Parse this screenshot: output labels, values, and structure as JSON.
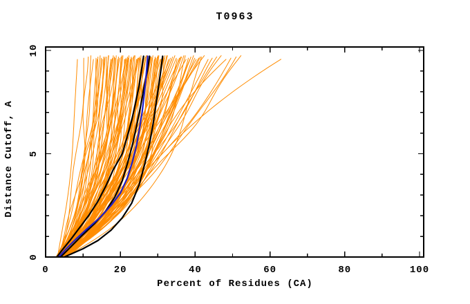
{
  "title": "T0963",
  "axes": {
    "xlabel": "Percent of Residues (CA)",
    "ylabel": "Distance Cutoff, A"
  },
  "colors": {
    "background": "#ffffff",
    "frame": "#000000",
    "orange_models": "#FF8C00",
    "highlight_black": "#000000",
    "highlight_blue": "#2020C8"
  },
  "chart_data": {
    "type": "line",
    "title": "T0963",
    "xlabel": "Percent of Residues (CA)",
    "ylabel": "Distance Cutoff, A",
    "xlim": [
      0,
      101
    ],
    "ylim": [
      0,
      10.17
    ],
    "x_major_ticks": [
      0,
      20,
      40,
      60,
      80,
      100
    ],
    "x_minor_ticks": [
      10,
      30,
      50,
      70,
      90
    ],
    "y_major_ticks": [
      0,
      5,
      10
    ],
    "y_minor_ticks": [
      1,
      2,
      3,
      4,
      6,
      7,
      8,
      9
    ],
    "grid": false,
    "legend": "none",
    "series": [
      {
        "name": "highlight-black-1",
        "color": "#000000",
        "width": 2.2,
        "points": [
          [
            3,
            0
          ],
          [
            4.5,
            0.35
          ],
          [
            6.5,
            0.8
          ],
          [
            9,
            1.4
          ],
          [
            11.5,
            2.0
          ],
          [
            14,
            2.7
          ],
          [
            16,
            3.4
          ],
          [
            18,
            4.2
          ],
          [
            20.5,
            5.0
          ],
          [
            21.8,
            5.8
          ],
          [
            23,
            6.6
          ],
          [
            24,
            7.4
          ],
          [
            25,
            8.3
          ],
          [
            25.7,
            9.1
          ],
          [
            26.2,
            9.72
          ]
        ]
      },
      {
        "name": "highlight-black-2",
        "color": "#000000",
        "width": 2.2,
        "points": [
          [
            4,
            0
          ],
          [
            6.5,
            0.45
          ],
          [
            9.5,
            1.0
          ],
          [
            13,
            1.6
          ],
          [
            16,
            2.2
          ],
          [
            18.5,
            2.9
          ],
          [
            20.5,
            3.7
          ],
          [
            22,
            4.6
          ],
          [
            23.3,
            5.5
          ],
          [
            24.4,
            6.4
          ],
          [
            25.4,
            7.3
          ],
          [
            26.3,
            8.2
          ],
          [
            27.2,
            9.0
          ],
          [
            27.8,
            9.72
          ]
        ]
      },
      {
        "name": "highlight-black-3",
        "color": "#000000",
        "width": 2.2,
        "points": [
          [
            5,
            0
          ],
          [
            10,
            0.4
          ],
          [
            14,
            0.8
          ],
          [
            17.5,
            1.3
          ],
          [
            20.5,
            1.9
          ],
          [
            23,
            2.6
          ],
          [
            25,
            3.5
          ],
          [
            26.5,
            4.5
          ],
          [
            27.8,
            5.5
          ],
          [
            28.8,
            6.5
          ],
          [
            29.6,
            7.5
          ],
          [
            30.4,
            8.5
          ],
          [
            31,
            9.3
          ],
          [
            31.3,
            9.72
          ]
        ]
      },
      {
        "name": "highlight-blue",
        "color": "#2020C8",
        "width": 2.2,
        "points": [
          [
            3.5,
            0
          ],
          [
            5.5,
            0.4
          ],
          [
            8,
            0.85
          ],
          [
            11,
            1.35
          ],
          [
            14.5,
            1.9
          ],
          [
            17.5,
            2.5
          ],
          [
            20,
            3.1
          ],
          [
            21.8,
            3.8
          ],
          [
            23.2,
            4.6
          ],
          [
            24.3,
            5.4
          ],
          [
            25.1,
            6.2
          ],
          [
            25.8,
            7.0
          ],
          [
            26.4,
            7.9
          ],
          [
            26.9,
            8.8
          ],
          [
            27.3,
            9.72
          ]
        ]
      }
    ],
    "background_curves": {
      "name": "server-model-curves",
      "color": "#FF8C00",
      "width": 1,
      "count": 109,
      "note": "each entry is [percent at cutoff 0, percent at cutoff ~9.7]",
      "endpoints": [
        [
          3.2,
          8.5
        ],
        [
          4.0,
          10.2
        ],
        [
          3.5,
          11.4
        ],
        [
          4.4,
          12.1
        ],
        [
          2.9,
          12.8
        ],
        [
          3.0,
          13.5
        ],
        [
          4.2,
          14.0
        ],
        [
          3.6,
          14.6
        ],
        [
          4.8,
          15.2
        ],
        [
          2.8,
          15.8
        ],
        [
          5.2,
          16.3
        ],
        [
          3.3,
          16.9
        ],
        [
          4.5,
          17.4
        ],
        [
          3.9,
          17.9
        ],
        [
          5.5,
          18.4
        ],
        [
          3.0,
          18.9
        ],
        [
          4.2,
          19.3
        ],
        [
          3.6,
          19.8
        ],
        [
          4.8,
          20.2
        ],
        [
          2.8,
          20.7
        ],
        [
          5.2,
          21.1
        ],
        [
          3.3,
          21.5
        ],
        [
          4.5,
          21.9
        ],
        [
          3.9,
          22.3
        ],
        [
          5.5,
          22.7
        ],
        [
          3.0,
          23.1
        ],
        [
          4.2,
          23.5
        ],
        [
          3.6,
          23.9
        ],
        [
          4.8,
          24.3
        ],
        [
          2.8,
          24.7
        ],
        [
          5.2,
          25.1
        ],
        [
          3.3,
          25.5
        ],
        [
          4.5,
          25.9
        ],
        [
          3.9,
          26.3
        ],
        [
          5.5,
          26.7
        ],
        [
          3.0,
          27.1
        ],
        [
          4.2,
          27.5
        ],
        [
          3.6,
          27.9
        ],
        [
          4.8,
          28.3
        ],
        [
          2.8,
          28.7
        ],
        [
          5.2,
          29.1
        ],
        [
          3.3,
          29.5
        ],
        [
          4.5,
          29.9
        ],
        [
          3.9,
          30.3
        ],
        [
          5.5,
          30.7
        ],
        [
          3.0,
          31.1
        ],
        [
          4.2,
          31.5
        ],
        [
          3.6,
          31.9
        ],
        [
          4.6,
          13.8
        ],
        [
          3.1,
          14.9
        ],
        [
          5.0,
          15.9
        ],
        [
          3.7,
          16.8
        ],
        [
          4.3,
          17.7
        ],
        [
          2.9,
          18.6
        ],
        [
          5.3,
          19.5
        ],
        [
          3.4,
          20.4
        ],
        [
          4.7,
          21.3
        ],
        [
          3.8,
          22.1
        ],
        [
          5.1,
          22.9
        ],
        [
          3.2,
          23.7
        ],
        [
          4.4,
          24.5
        ],
        [
          2.7,
          25.3
        ],
        [
          5.4,
          26.1
        ],
        [
          3.5,
          26.9
        ],
        [
          4.1,
          27.7
        ],
        [
          2.9,
          28.5
        ],
        [
          5.0,
          29.3
        ],
        [
          3.6,
          30.1
        ],
        [
          4.4,
          30.9
        ],
        [
          3.1,
          31.7
        ],
        [
          4.0,
          15.5
        ],
        [
          3.4,
          18.1
        ],
        [
          4.9,
          21.7
        ],
        [
          3.2,
          24.9
        ],
        [
          4.6,
          28.1
        ],
        [
          3.5,
          32.4
        ],
        [
          4.7,
          32.9
        ],
        [
          3.0,
          33.4
        ],
        [
          5.2,
          34.0
        ],
        [
          3.8,
          34.6
        ],
        [
          4.4,
          35.2
        ],
        [
          2.9,
          35.8
        ],
        [
          5.0,
          36.4
        ],
        [
          3.4,
          37.0
        ],
        [
          4.6,
          37.6
        ],
        [
          3.1,
          38.2
        ],
        [
          5.3,
          38.9
        ],
        [
          3.7,
          39.6
        ],
        [
          4.2,
          40.3
        ],
        [
          2.8,
          41.0
        ],
        [
          4.9,
          41.7
        ],
        [
          3.3,
          32.6
        ],
        [
          4.5,
          33.8
        ],
        [
          3.9,
          35.0
        ],
        [
          5.1,
          36.2
        ],
        [
          3.0,
          37.4
        ],
        [
          4.3,
          38.6
        ],
        [
          3.6,
          39.9
        ],
        [
          4.8,
          41.4
        ],
        [
          3.4,
          42.5
        ],
        [
          4.6,
          43.5
        ],
        [
          3.0,
          44.6
        ],
        [
          5.0,
          45.8
        ],
        [
          3.7,
          47.0
        ],
        [
          4.3,
          48.3
        ],
        [
          2.9,
          49.6
        ],
        [
          4.8,
          51.0
        ],
        [
          3.5,
          52.3
        ],
        [
          5.0,
          63.0
        ]
      ]
    }
  }
}
